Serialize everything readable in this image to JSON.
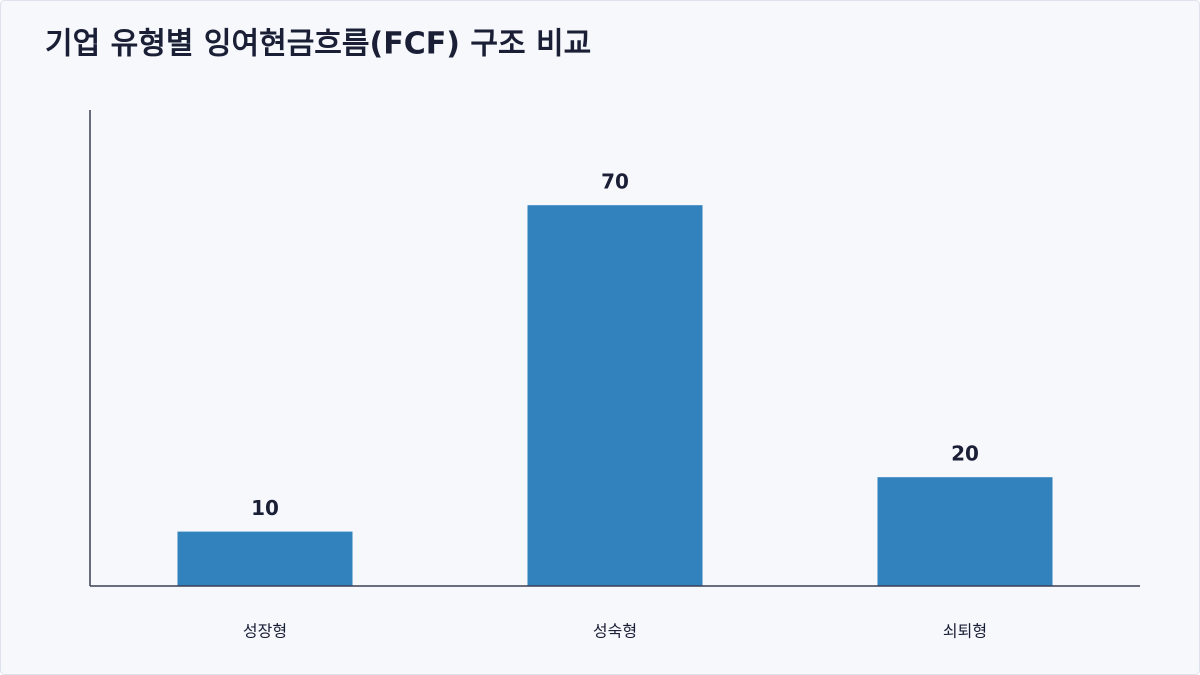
{
  "chart_data": {
    "type": "bar",
    "title": "기업 유형별 잉여현금흐름(FCF) 구조 비교",
    "categories": [
      "성장형",
      "성숙형",
      "쇠퇴형"
    ],
    "values": [
      10,
      70,
      20
    ],
    "color": "#3182bd",
    "ylim": [
      0,
      87.5
    ]
  }
}
